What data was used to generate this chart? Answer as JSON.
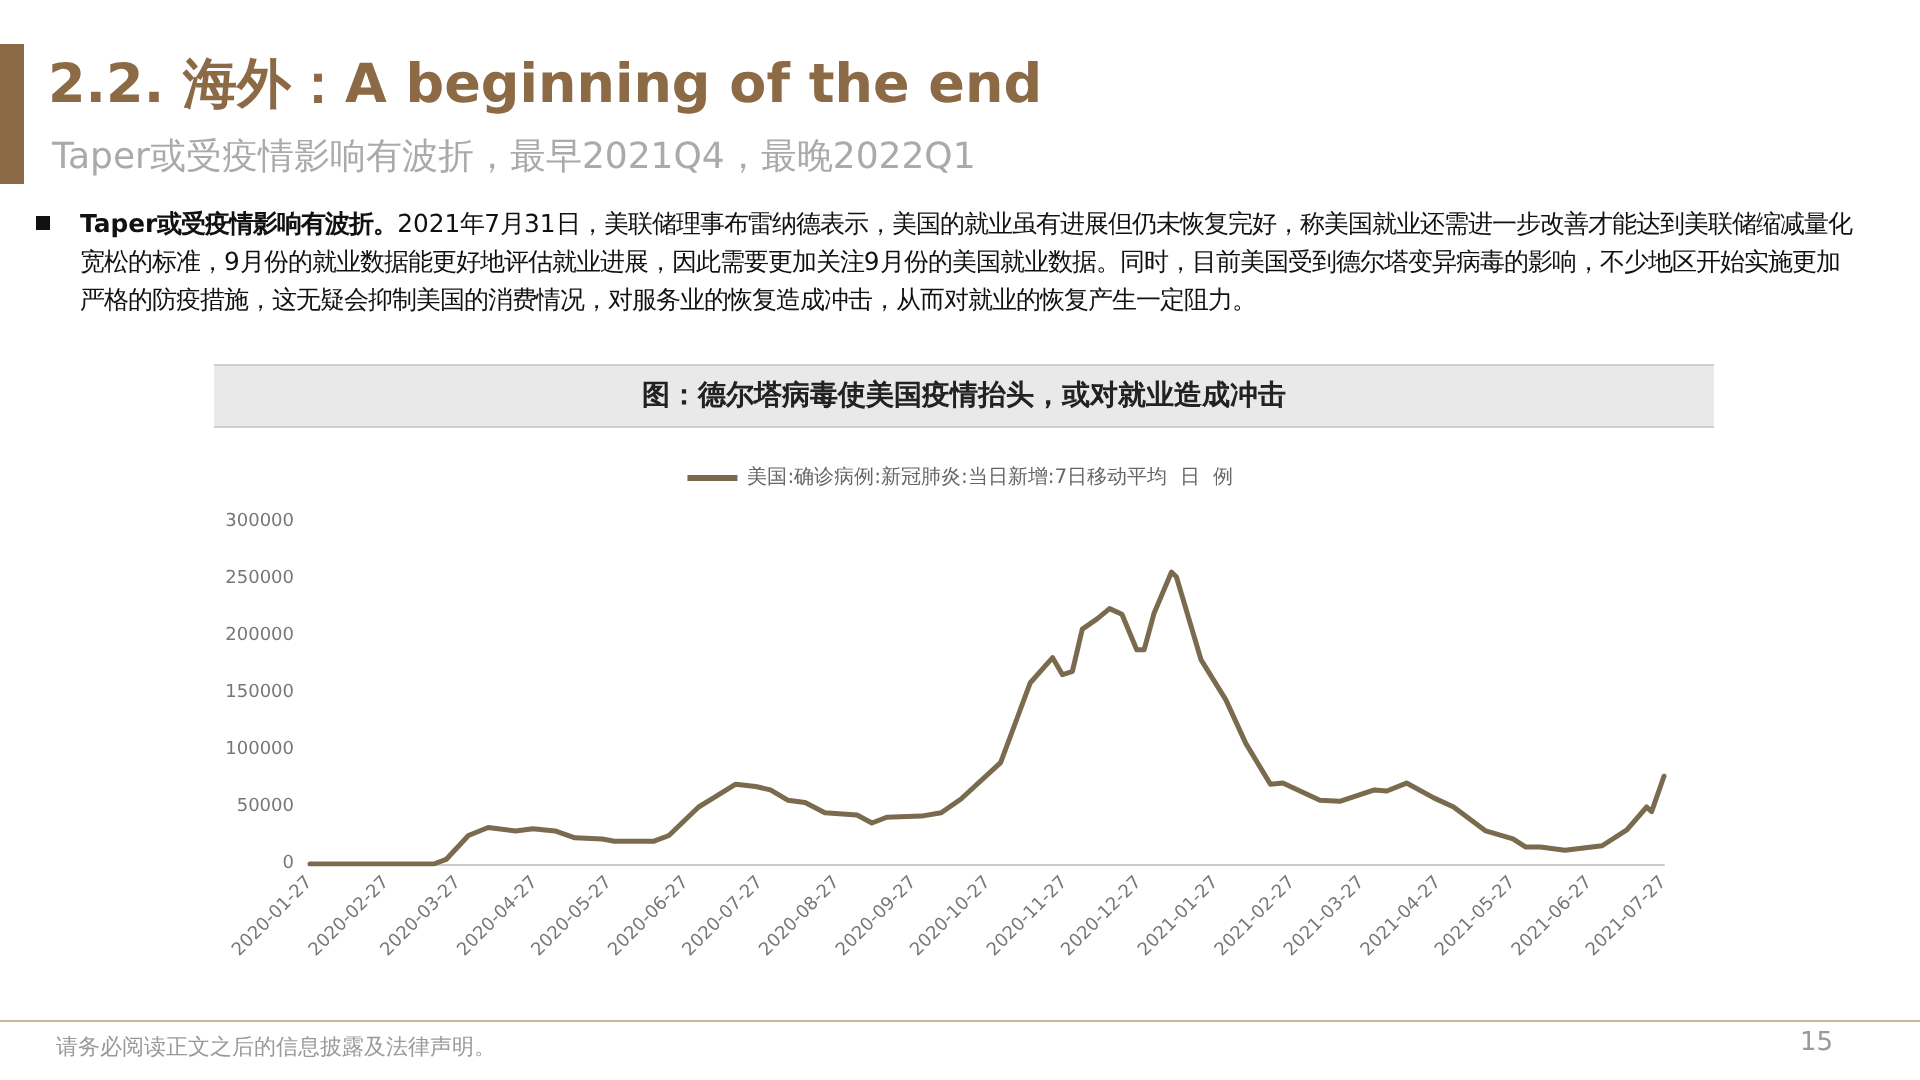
{
  "chart_data": {
    "type": "line",
    "title": "2.2. 海外：A beginning of the end",
    "subtitle": "Taper或受疫情影响有波折，最早2021Q4，最晚2022Q1",
    "annotations": [
      "Taper或受疫情影响有波折。",
      "2021年7月31日，美联储理事布雷纳德表示，美国的就业虽有进展但仍未恢复完好，称美国就业还需进一步改善才能达到美联储缩减量化宽松的标准，9月份的就业数据能更好地评估就业进展，因此需要更加关注9月份的美国就业数据。同时，目前美国受到德尔塔变异病毒的影响，不少地区开始实施更加严格的防疫措施，这无疑会抑制美国的消费情况，对服务业的恢复造成冲击，从而对就业的恢复产生一定阻力。",
      "图：德尔塔病毒使美国疫情抬头，或对就业造成冲击",
      "请务必阅读正文之后的信息披露及法律声明。",
      "15"
    ],
    "x": [
      "2020-01-27",
      "2020-03-17",
      "2020-03-22",
      "2020-03-31",
      "2020-04-08",
      "2020-04-19",
      "2020-04-26",
      "2020-05-05",
      "2020-05-13",
      "2020-05-24",
      "2020-05-29",
      "2020-06-14",
      "2020-06-20",
      "2020-07-02",
      "2020-07-08",
      "2020-07-17",
      "2020-07-25",
      "2020-07-31",
      "2020-08-07",
      "2020-08-14",
      "2020-08-22",
      "2020-09-04",
      "2020-09-10",
      "2020-09-16",
      "2020-09-30",
      "2020-10-08",
      "2020-10-16",
      "2020-11-01",
      "2020-11-13",
      "2020-11-22",
      "2020-11-26",
      "2020-11-30",
      "2020-12-04",
      "2020-12-10",
      "2020-12-15",
      "2020-12-20",
      "2020-12-26",
      "2020-12-29",
      "2021-01-02",
      "2021-01-09",
      "2021-01-11",
      "2021-01-21",
      "2021-01-31",
      "2021-02-08",
      "2021-02-18",
      "2021-02-23",
      "2021-03-10",
      "2021-03-18",
      "2021-04-01",
      "2021-04-06",
      "2021-04-14",
      "2021-04-25",
      "2021-05-03",
      "2021-05-16",
      "2021-05-27",
      "2021-06-01",
      "2021-06-07",
      "2021-06-17",
      "2021-07-02",
      "2021-07-12",
      "2021-07-20",
      "2021-07-22",
      "2021-07-27"
    ],
    "series": [
      {
        "name": "美国:确诊病例:新冠肺炎:当日新增:7日移动平均  日  例",
        "color": "#7a6a4e",
        "values": [
          0,
          0,
          4000,
          25000,
          32000,
          29000,
          31000,
          29000,
          23000,
          22000,
          20000,
          20000,
          25000,
          50000,
          58000,
          70000,
          68000,
          65000,
          56000,
          54000,
          45000,
          43000,
          36000,
          41000,
          42000,
          45000,
          57000,
          89000,
          159000,
          181000,
          166000,
          169000,
          206000,
          215000,
          224000,
          219000,
          188000,
          188000,
          220000,
          256000,
          252000,
          179000,
          144000,
          106000,
          70000,
          71000,
          56000,
          55000,
          65000,
          64000,
          71000,
          58000,
          50000,
          29000,
          22000,
          15000,
          15000,
          12000,
          16000,
          30000,
          50000,
          46000,
          77000
        ]
      }
    ],
    "xlim": [
      "2020-01-27",
      "2021-07-27"
    ],
    "xticks": [
      "2020-01-27",
      "2020-02-27",
      "2020-03-27",
      "2020-04-27",
      "2020-05-27",
      "2020-06-27",
      "2020-07-27",
      "2020-08-27",
      "2020-09-27",
      "2020-10-27",
      "2020-11-27",
      "2020-12-27",
      "2021-01-27",
      "2021-02-27",
      "2021-03-27",
      "2021-04-27",
      "2021-05-27",
      "2021-06-27",
      "2021-07-27"
    ],
    "ylim": [
      0,
      300000
    ],
    "yticks": [
      0,
      50000,
      100000,
      150000,
      200000,
      250000,
      300000
    ],
    "grid": false,
    "legend": "top",
    "marker": "none",
    "line_style": "solid"
  }
}
